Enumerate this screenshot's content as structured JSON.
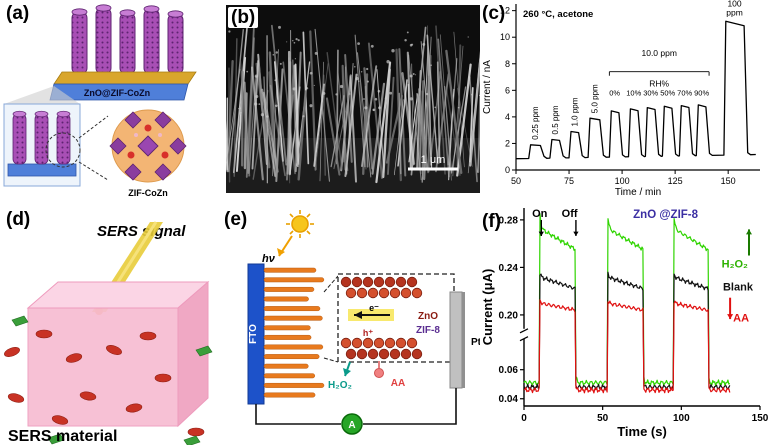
{
  "figure": {
    "panel_a": {
      "label": "(a)",
      "caption_top": "ZnO@ZIF-CoZn",
      "caption_bottom": "ZIF-CoZn"
    },
    "panel_b": {
      "label": "(b)",
      "scalebar": "1 μm"
    },
    "panel_c": {
      "label": "(c)"
    },
    "panel_d": {
      "label": "(d)",
      "signal_label": "SERS signal",
      "caption": "SERS material"
    },
    "panel_e": {
      "label": "(e)",
      "hv": "hν",
      "fto": "FTO",
      "zno": "ZnO",
      "zif8": "ZIF-8",
      "electron": "e⁻",
      "hole": "h⁺",
      "h2o2": "H₂O₂",
      "aa": "AA",
      "pt": "Pt",
      "ammeter": "A"
    },
    "panel_f": {
      "label": "(f)"
    }
  },
  "chart_data": [
    {
      "panel": "c",
      "type": "line",
      "title": "260 °C, acetone",
      "xlabel": "Time / min",
      "ylabel": "Current / nA",
      "xlim": [
        50,
        165
      ],
      "ylim": [
        0,
        12.5
      ],
      "xticks": [
        50,
        75,
        100,
        125,
        150
      ],
      "yticks": [
        0,
        2,
        4,
        6,
        8,
        10,
        12
      ],
      "line_color": "#000000",
      "baseline_nA_start": 0.85,
      "baseline_drift_per_min": 0.0028,
      "pulses": [
        {
          "label": "0.25 ppm",
          "start": 56,
          "end": 62,
          "peak": 1.9,
          "rot": true
        },
        {
          "label": "0.5 ppm",
          "start": 66,
          "end": 71,
          "peak": 2.3,
          "rot": true
        },
        {
          "label": "1.0 ppm",
          "start": 75,
          "end": 80,
          "peak": 2.9,
          "rot": true
        },
        {
          "label": "5.0 ppm",
          "start": 84,
          "end": 90,
          "peak": 3.9,
          "rot": true
        },
        {
          "label": "0%",
          "start": 94,
          "end": 99,
          "peak": 4.45,
          "pct": true
        },
        {
          "label": "10%",
          "start": 103,
          "end": 108,
          "peak": 4.6,
          "pct": true
        },
        {
          "label": "30%",
          "start": 111,
          "end": 116,
          "peak": 4.7,
          "pct": true
        },
        {
          "label": "50%",
          "start": 119,
          "end": 124,
          "peak": 4.8,
          "pct": true
        },
        {
          "label": "70%",
          "start": 127,
          "end": 132,
          "peak": 4.85,
          "pct": true
        },
        {
          "label": "90%",
          "start": 135,
          "end": 140,
          "peak": 4.9,
          "pct": true
        },
        {
          "label": "100 ppm",
          "start": 148,
          "end": 158,
          "peak": 11.2
        }
      ],
      "group_label": {
        "text": "10.0 ppm",
        "sub": "RH%",
        "span": [
          94,
          141
        ],
        "bracket_y": 7.4,
        "text_y": 8.6,
        "sub_y": 6.3
      }
    },
    {
      "panel": "f",
      "type": "line",
      "xlabel": "Time (s)",
      "ylabel": "Current (μA)",
      "xlim": [
        0,
        150
      ],
      "xticks": [
        0,
        50,
        100,
        150
      ],
      "y_axis_break": {
        "top_range": [
          0.19,
          0.29
        ],
        "bottom_range": [
          0.035,
          0.08
        ],
        "top_ticks": [
          0.2,
          0.24,
          0.28
        ],
        "bottom_ticks": [
          0.04,
          0.06
        ]
      },
      "light_on_windows": [
        [
          10,
          33
        ],
        [
          53,
          76
        ],
        [
          95,
          117
        ]
      ],
      "series": [
        {
          "name": "H₂O₂",
          "color": "#2fd400",
          "on_start": 0.273,
          "on_end": 0.255,
          "off": 0.051,
          "spike": 0.016
        },
        {
          "name": "Blank",
          "color": "#111111",
          "on_start": 0.232,
          "on_end": 0.222,
          "off": 0.048,
          "spike": 0.004
        },
        {
          "name": "AA",
          "color": "#e01010",
          "on_start": 0.21,
          "on_end": 0.204,
          "off": 0.046,
          "spike": 0.003
        }
      ],
      "annotations": {
        "on": "On",
        "off": "Off",
        "title": "ZnO @ZIF-8",
        "title_color": "#3b2fa3",
        "right_labels": [
          {
            "text": "H₂O₂",
            "color": "#2db200",
            "arrow": "up",
            "arrow_color": "#1a7a00"
          },
          {
            "text": "Blank",
            "color": "#111111"
          },
          {
            "text": "AA",
            "color": "#e01010",
            "arrow": "down",
            "arrow_color": "#e01010"
          }
        ]
      }
    }
  ]
}
